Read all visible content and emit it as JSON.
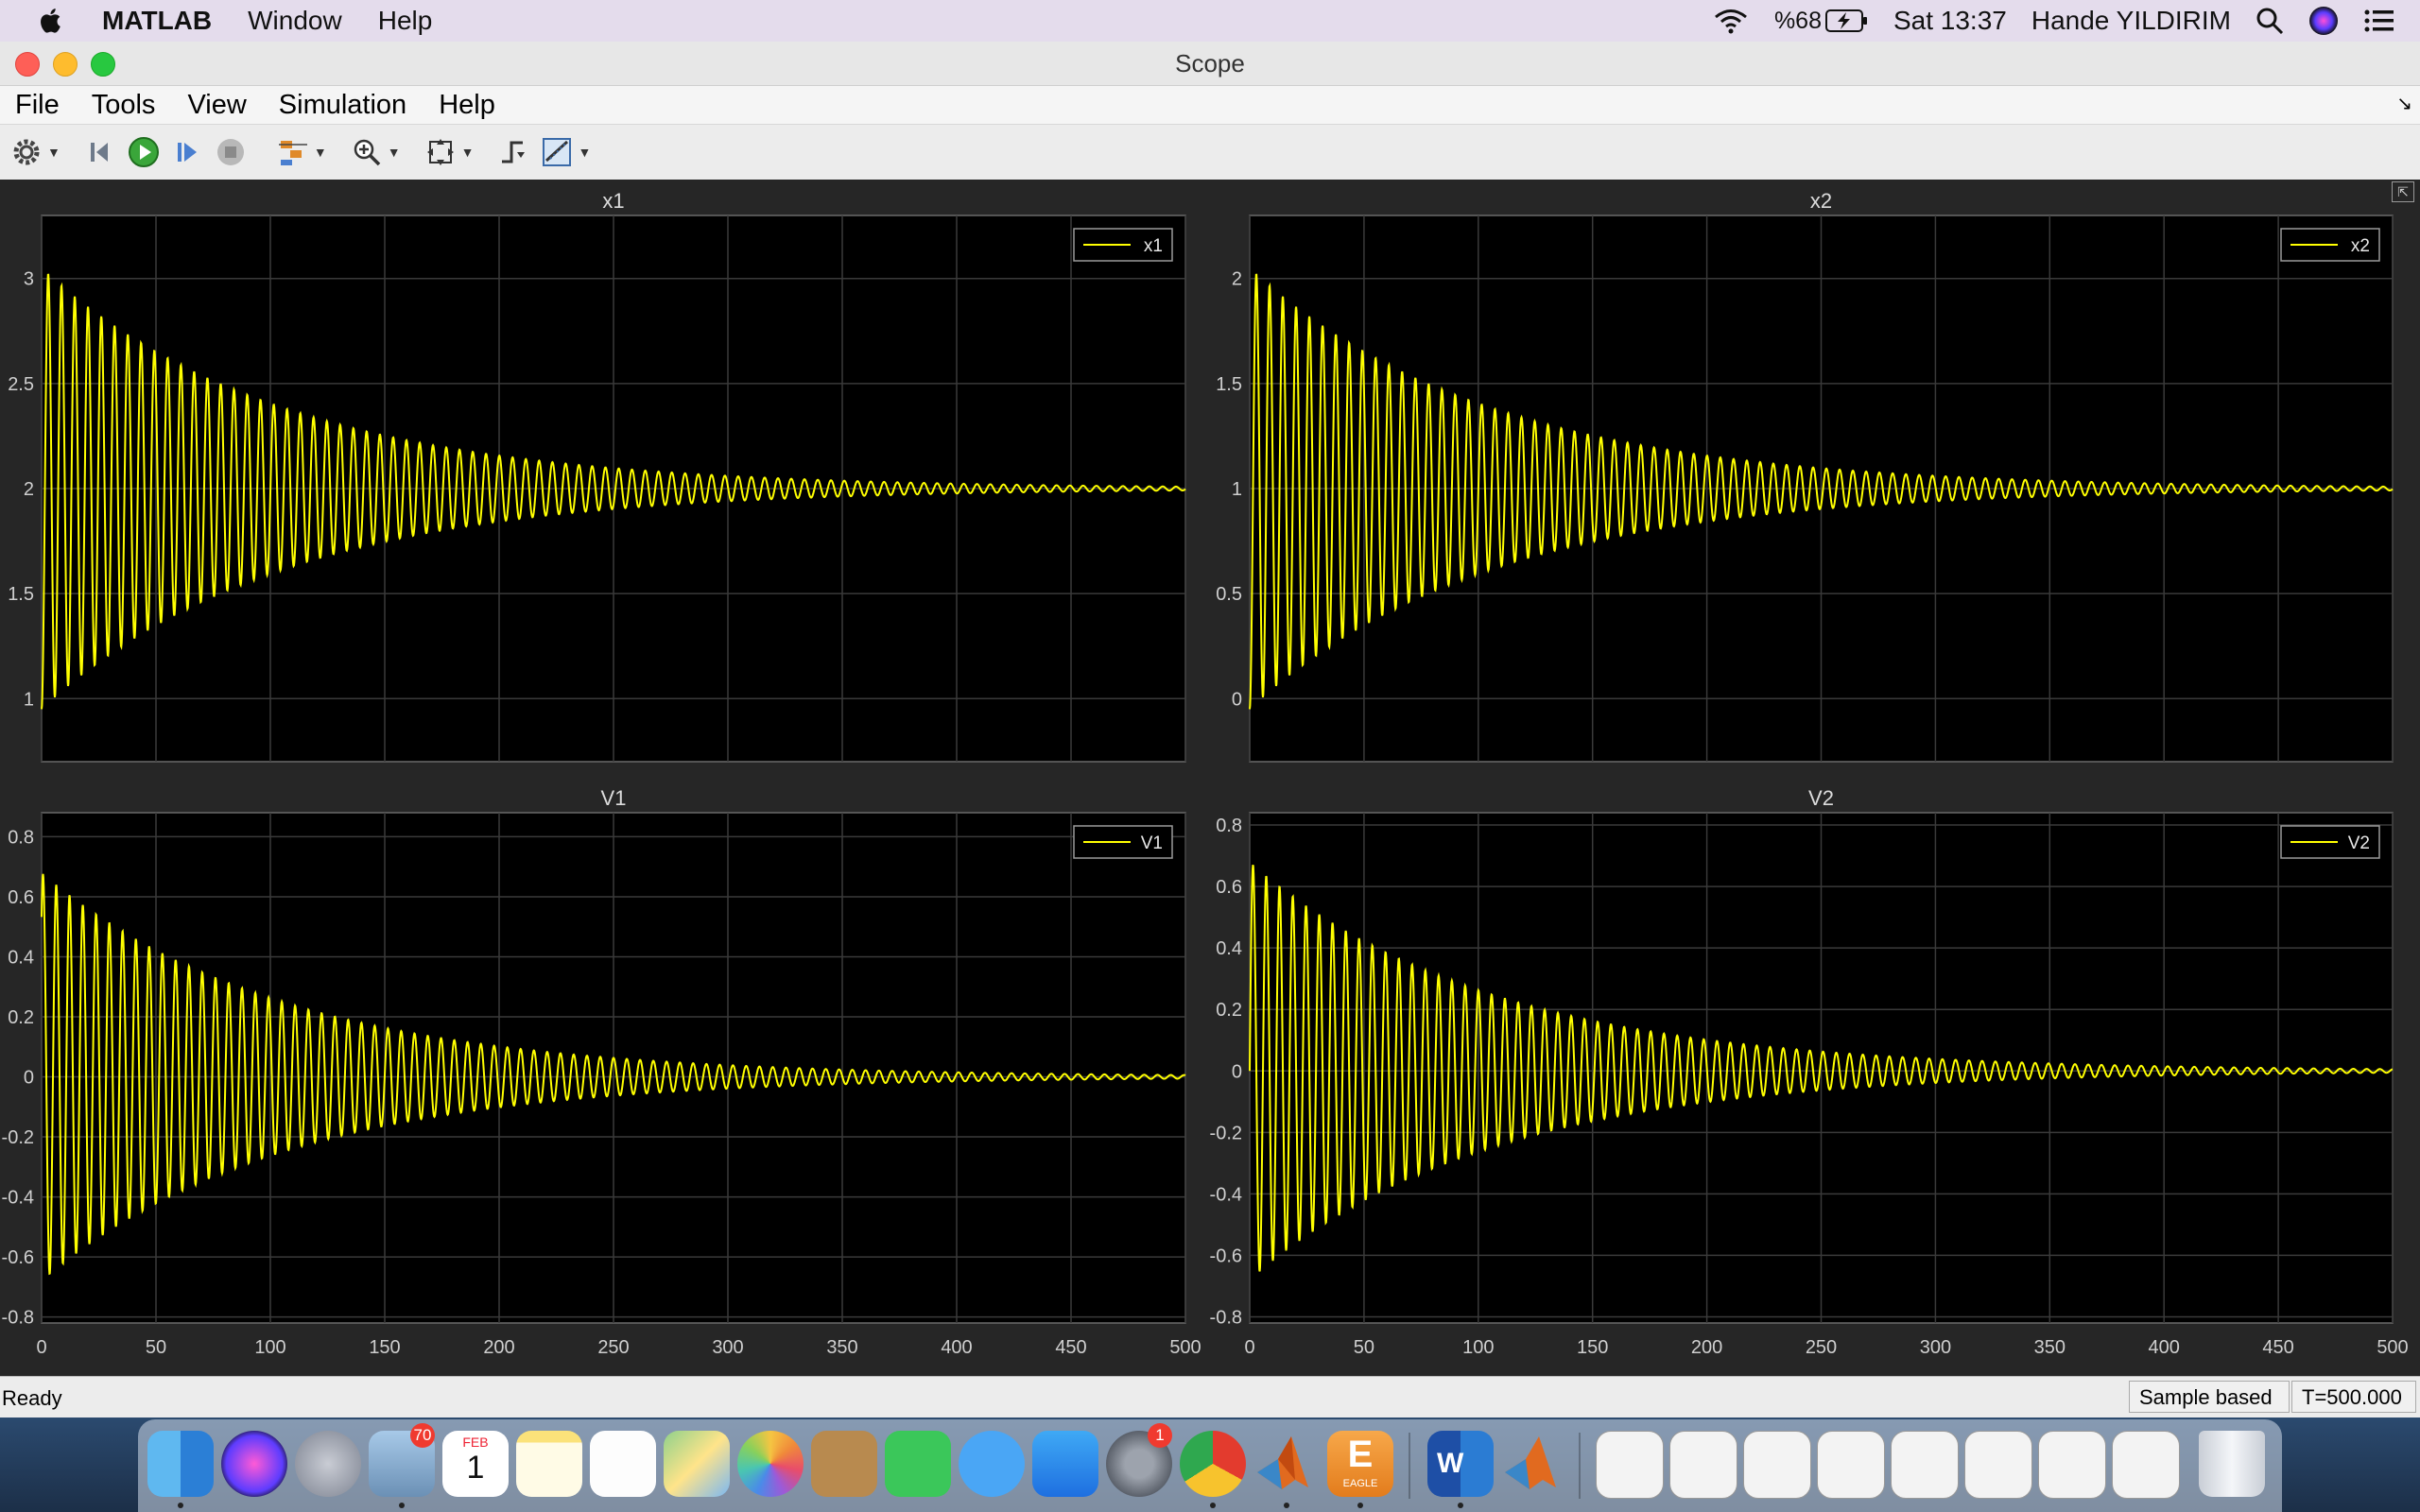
{
  "menubar": {
    "app": "MATLAB",
    "items": [
      "Window",
      "Help"
    ],
    "battery": "%68",
    "clock": "Sat 13:37",
    "user": "Hande YILDIRIM"
  },
  "window": {
    "title": "Scope",
    "menu": [
      "File",
      "Tools",
      "View",
      "Simulation",
      "Help"
    ]
  },
  "status": {
    "left": "Ready",
    "mode": "Sample based",
    "time": "T=500.000"
  },
  "dock": {
    "mail_badge": "70",
    "calendar_month": "FEB",
    "calendar_day": "1",
    "prefs_badge": "1",
    "eagle_label": "EAGLE"
  },
  "colors": {
    "trace": "#ffff00",
    "plot_bg": "#000000",
    "scope_bg": "#262626",
    "grid": "#3a3a3a"
  },
  "chart_data": [
    {
      "type": "line",
      "title": "x1",
      "legend": [
        "x1"
      ],
      "xlim": [
        0,
        500
      ],
      "ylim": [
        0.7,
        3.3
      ],
      "xticks": [
        0,
        50,
        100,
        150,
        200,
        250,
        300,
        350,
        400,
        450,
        500
      ],
      "yticks": [
        1,
        1.5,
        2,
        2.5,
        3
      ],
      "ytick_labels": [
        "1",
        "1.5",
        "2",
        "2.5",
        "3"
      ],
      "series": [
        {
          "name": "x1",
          "description": "decaying oscillation about 2",
          "x": [
            0,
            2.5,
            5,
            7.5,
            10,
            50,
            100,
            150,
            200,
            250,
            300,
            350,
            400,
            450,
            500
          ],
          "y": [
            1.0,
            3.05,
            0.95,
            3.0,
            1.05,
            2.8,
            2.45,
            2.3,
            2.2,
            2.12,
            2.06,
            2.04,
            2.03,
            2.02,
            2.0
          ],
          "envelope": {
            "center": 2.0,
            "amplitude": 1.05,
            "period": 5.8,
            "decay": 0.0095
          }
        }
      ],
      "xlabel_visible": false
    },
    {
      "type": "line",
      "title": "x2",
      "legend": [
        "x2"
      ],
      "xlim": [
        0,
        500
      ],
      "ylim": [
        -0.3,
        2.3
      ],
      "xticks": [
        0,
        50,
        100,
        150,
        200,
        250,
        300,
        350,
        400,
        450,
        500
      ],
      "yticks": [
        0,
        0.5,
        1,
        1.5,
        2
      ],
      "ytick_labels": [
        "0",
        "0.5",
        "1",
        "1.5",
        "2"
      ],
      "series": [
        {
          "name": "x2",
          "x": [
            0,
            2.5,
            5,
            7.5,
            10,
            50,
            100,
            150,
            200,
            250,
            300,
            350,
            400,
            450,
            500
          ],
          "y": [
            0.1,
            2.05,
            -0.03,
            2.0,
            0.05,
            1.8,
            1.45,
            1.3,
            1.2,
            1.12,
            1.06,
            1.04,
            1.03,
            1.02,
            1.0
          ],
          "envelope": {
            "center": 1.0,
            "amplitude": 1.05,
            "period": 5.8,
            "decay": 0.0095
          }
        }
      ],
      "xlabel_visible": false
    },
    {
      "type": "line",
      "title": "V1",
      "legend": [
        "V1"
      ],
      "xlim": [
        0,
        500
      ],
      "ylim": [
        -0.82,
        0.88
      ],
      "xticks": [
        0,
        50,
        100,
        150,
        200,
        250,
        300,
        350,
        400,
        450,
        500
      ],
      "xtick_labels": [
        "0",
        "50",
        "100",
        "150",
        "200",
        "250",
        "300",
        "350",
        "400",
        "450",
        "500"
      ],
      "yticks": [
        -0.8,
        -0.6,
        -0.4,
        -0.2,
        0,
        0.2,
        0.4,
        0.6,
        0.8
      ],
      "ytick_labels": [
        "-0.8",
        "-0.6",
        "-0.4",
        "-0.2",
        "0",
        "0.2",
        "0.4",
        "0.6",
        "0.8"
      ],
      "series": [
        {
          "name": "V1",
          "x": [
            0,
            1.5,
            4.5,
            7.5,
            50,
            100,
            150,
            200,
            250,
            300,
            350,
            400,
            450,
            500
          ],
          "y": [
            0.55,
            0.68,
            -0.65,
            0.6,
            0.5,
            0.32,
            0.22,
            0.14,
            0.09,
            0.05,
            0.04,
            0.02,
            0.015,
            0.01
          ],
          "envelope": {
            "center": 0.0,
            "amplitude": 0.68,
            "period": 5.8,
            "decay": 0.0095
          }
        }
      ]
    },
    {
      "type": "line",
      "title": "V2",
      "legend": [
        "V2"
      ],
      "xlim": [
        0,
        500
      ],
      "ylim": [
        -0.82,
        0.84
      ],
      "xticks": [
        0,
        50,
        100,
        150,
        200,
        250,
        300,
        350,
        400,
        450,
        500
      ],
      "xtick_labels": [
        "0",
        "50",
        "100",
        "150",
        "200",
        "250",
        "300",
        "350",
        "400",
        "450",
        "500"
      ],
      "yticks": [
        -0.8,
        -0.6,
        -0.4,
        -0.2,
        0,
        0.2,
        0.4,
        0.6,
        0.8
      ],
      "ytick_labels": [
        "-0.8",
        "-0.6",
        "-0.4",
        "-0.2",
        "0",
        "0.2",
        "0.4",
        "0.6",
        "0.8"
      ],
      "series": [
        {
          "name": "V2",
          "x": [
            0,
            1.5,
            4.5,
            7.5,
            50,
            100,
            150,
            200,
            250,
            300,
            350,
            400,
            450,
            500
          ],
          "y": [
            0.0,
            0.67,
            -0.65,
            0.62,
            0.5,
            0.32,
            0.22,
            0.14,
            0.09,
            0.05,
            0.04,
            0.02,
            0.015,
            0.01
          ],
          "envelope": {
            "center": 0.0,
            "amplitude": 0.68,
            "period": 5.8,
            "decay": 0.0095
          }
        }
      ]
    }
  ]
}
